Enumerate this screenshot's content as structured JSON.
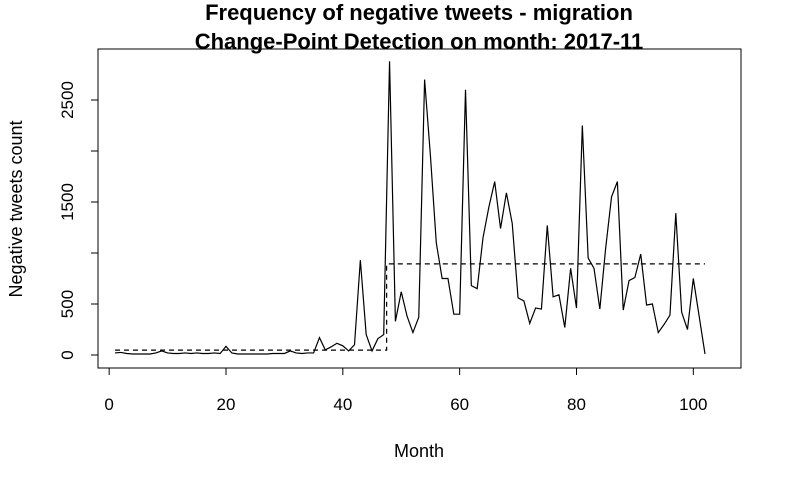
{
  "chart_data": {
    "type": "line",
    "title": "Frequency of negative tweets - migration",
    "subtitle": "Change-Point Detection on month: 2017-11",
    "xlabel": "Month",
    "ylabel": "Negative tweets count",
    "xlim": [
      1,
      102
    ],
    "ylim": [
      0,
      2900
    ],
    "xticks": [
      0,
      20,
      40,
      60,
      80,
      100
    ],
    "yticks": [
      0,
      500,
      1500,
      2500
    ],
    "grid": false,
    "series": [
      {
        "style": "solid",
        "x": [
          1,
          2,
          3,
          4,
          5,
          6,
          7,
          8,
          9,
          10,
          11,
          12,
          13,
          14,
          15,
          16,
          17,
          18,
          19,
          20,
          21,
          22,
          23,
          24,
          25,
          26,
          27,
          28,
          29,
          30,
          31,
          32,
          33,
          34,
          35,
          36,
          37,
          38,
          39,
          40,
          41,
          42,
          43,
          44,
          45,
          46,
          47,
          48,
          49,
          50,
          51,
          52,
          53,
          54,
          55,
          56,
          57,
          58,
          59,
          60,
          61,
          62,
          63,
          64,
          65,
          66,
          67,
          68,
          69,
          70,
          71,
          72,
          73,
          74,
          75,
          76,
          77,
          78,
          79,
          80,
          81,
          82,
          83,
          84,
          85,
          86,
          87,
          88,
          89,
          90,
          91,
          92,
          93,
          94,
          95,
          96,
          97,
          98,
          99,
          100,
          101,
          102
        ],
        "y": [
          20,
          25,
          15,
          10,
          10,
          10,
          10,
          20,
          40,
          20,
          15,
          15,
          20,
          15,
          20,
          15,
          15,
          20,
          15,
          85,
          20,
          10,
          10,
          10,
          10,
          10,
          10,
          15,
          15,
          15,
          40,
          20,
          15,
          20,
          20,
          170,
          50,
          80,
          115,
          90,
          40,
          100,
          930,
          200,
          40,
          160,
          200,
          2880,
          330,
          620,
          380,
          220,
          370,
          2700,
          1950,
          1100,
          750,
          750,
          400,
          400,
          2600,
          680,
          650,
          1150,
          1450,
          1700,
          1240,
          1590,
          1290,
          560,
          530,
          310,
          460,
          450,
          1270,
          570,
          590,
          270,
          850,
          460,
          2250,
          950,
          850,
          450,
          1050,
          1550,
          1700,
          440,
          730,
          760,
          990,
          490,
          500,
          220,
          300,
          390,
          1390,
          420,
          250,
          750,
          380,
          10
        ]
      },
      {
        "style": "dashed",
        "x": [
          1,
          47.5,
          47.5,
          102
        ],
        "y": [
          48,
          48,
          893,
          893
        ]
      }
    ]
  }
}
